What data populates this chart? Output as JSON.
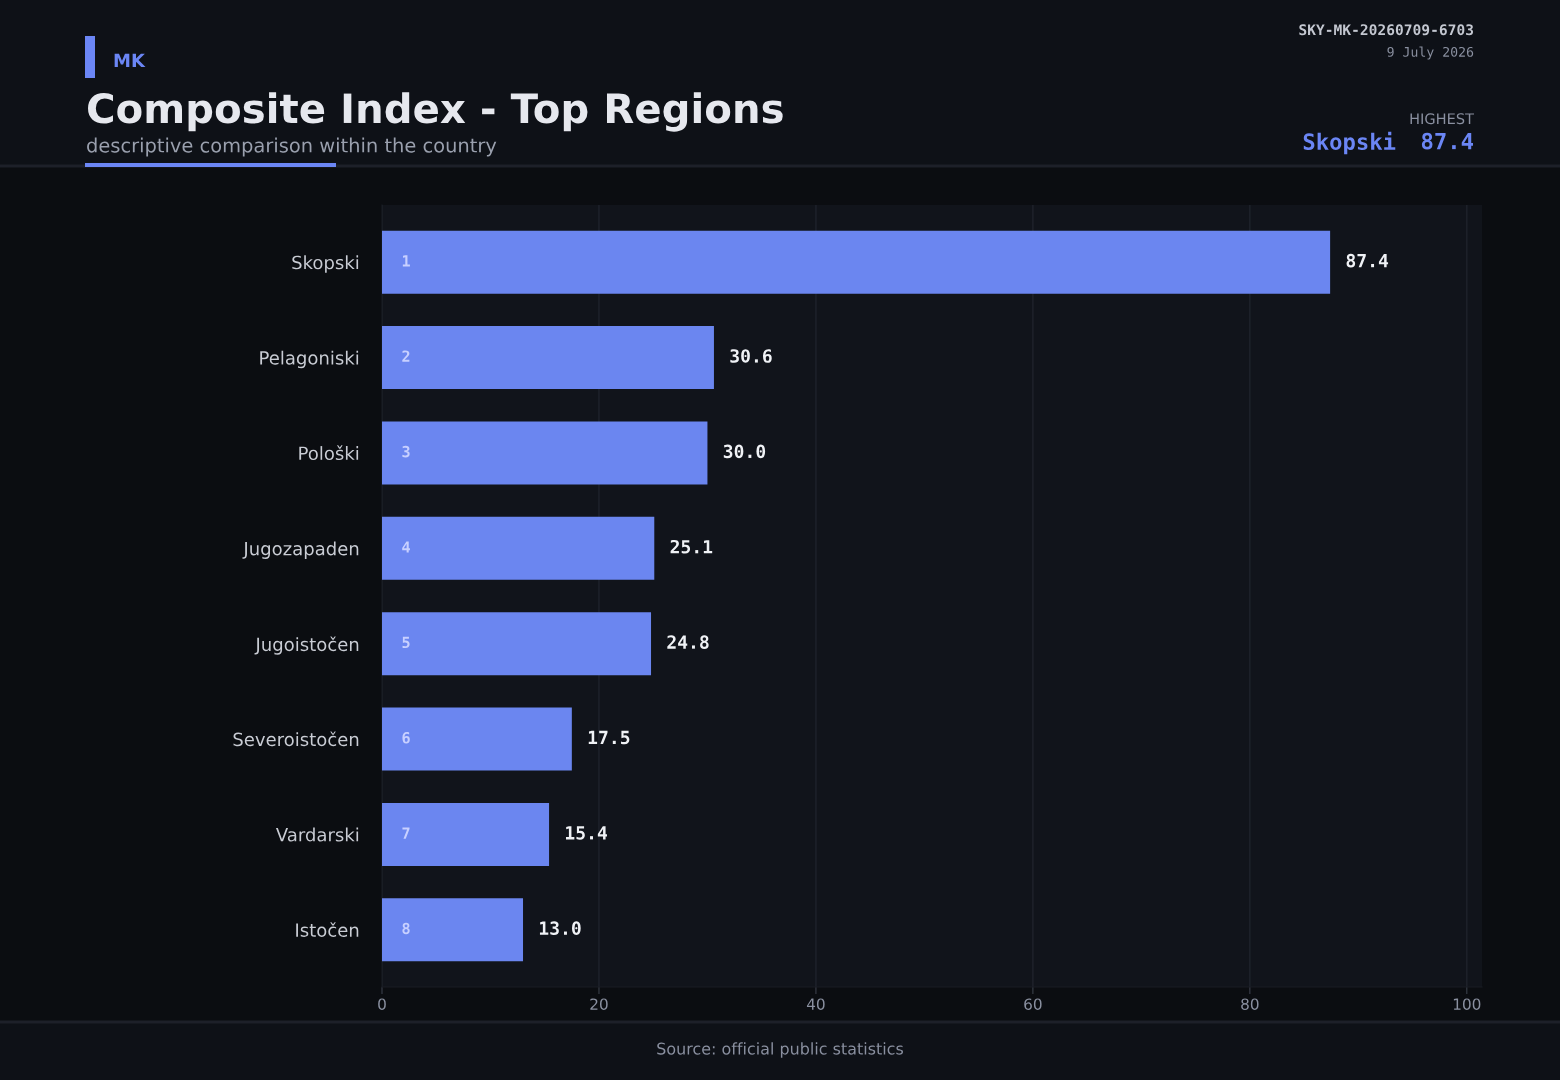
{
  "chart_data": {
    "type": "bar",
    "orientation": "horizontal",
    "title": "Composite Index - Top Regions",
    "subtitle": "descriptive comparison within the country",
    "categories": [
      "Skopski",
      "Pelagoniski",
      "Pološki",
      "Jugozapaden",
      "Jugoistočen",
      "Severoistočen",
      "Vardarski",
      "Istočen"
    ],
    "values": [
      87.4,
      30.6,
      30.0,
      25.1,
      24.8,
      17.5,
      15.4,
      13.0
    ],
    "value_labels": [
      "87.4",
      "30.6",
      "30.0",
      "25.1",
      "24.8",
      "17.5",
      "15.4",
      "13.0"
    ],
    "color": "#6b86f0",
    "xlim": [
      0,
      101.4
    ],
    "xticks": [
      0,
      20,
      40,
      60,
      80,
      100
    ],
    "grid": "x",
    "annotations": [
      "MK",
      "SKY-MK-20260709-6703",
      "9 July 2026",
      "HIGHEST",
      "Skopski",
      "87.4",
      "Source: official public statistics",
      "1",
      "2",
      "3",
      "4",
      "5",
      "6",
      "7",
      "8"
    ]
  }
}
